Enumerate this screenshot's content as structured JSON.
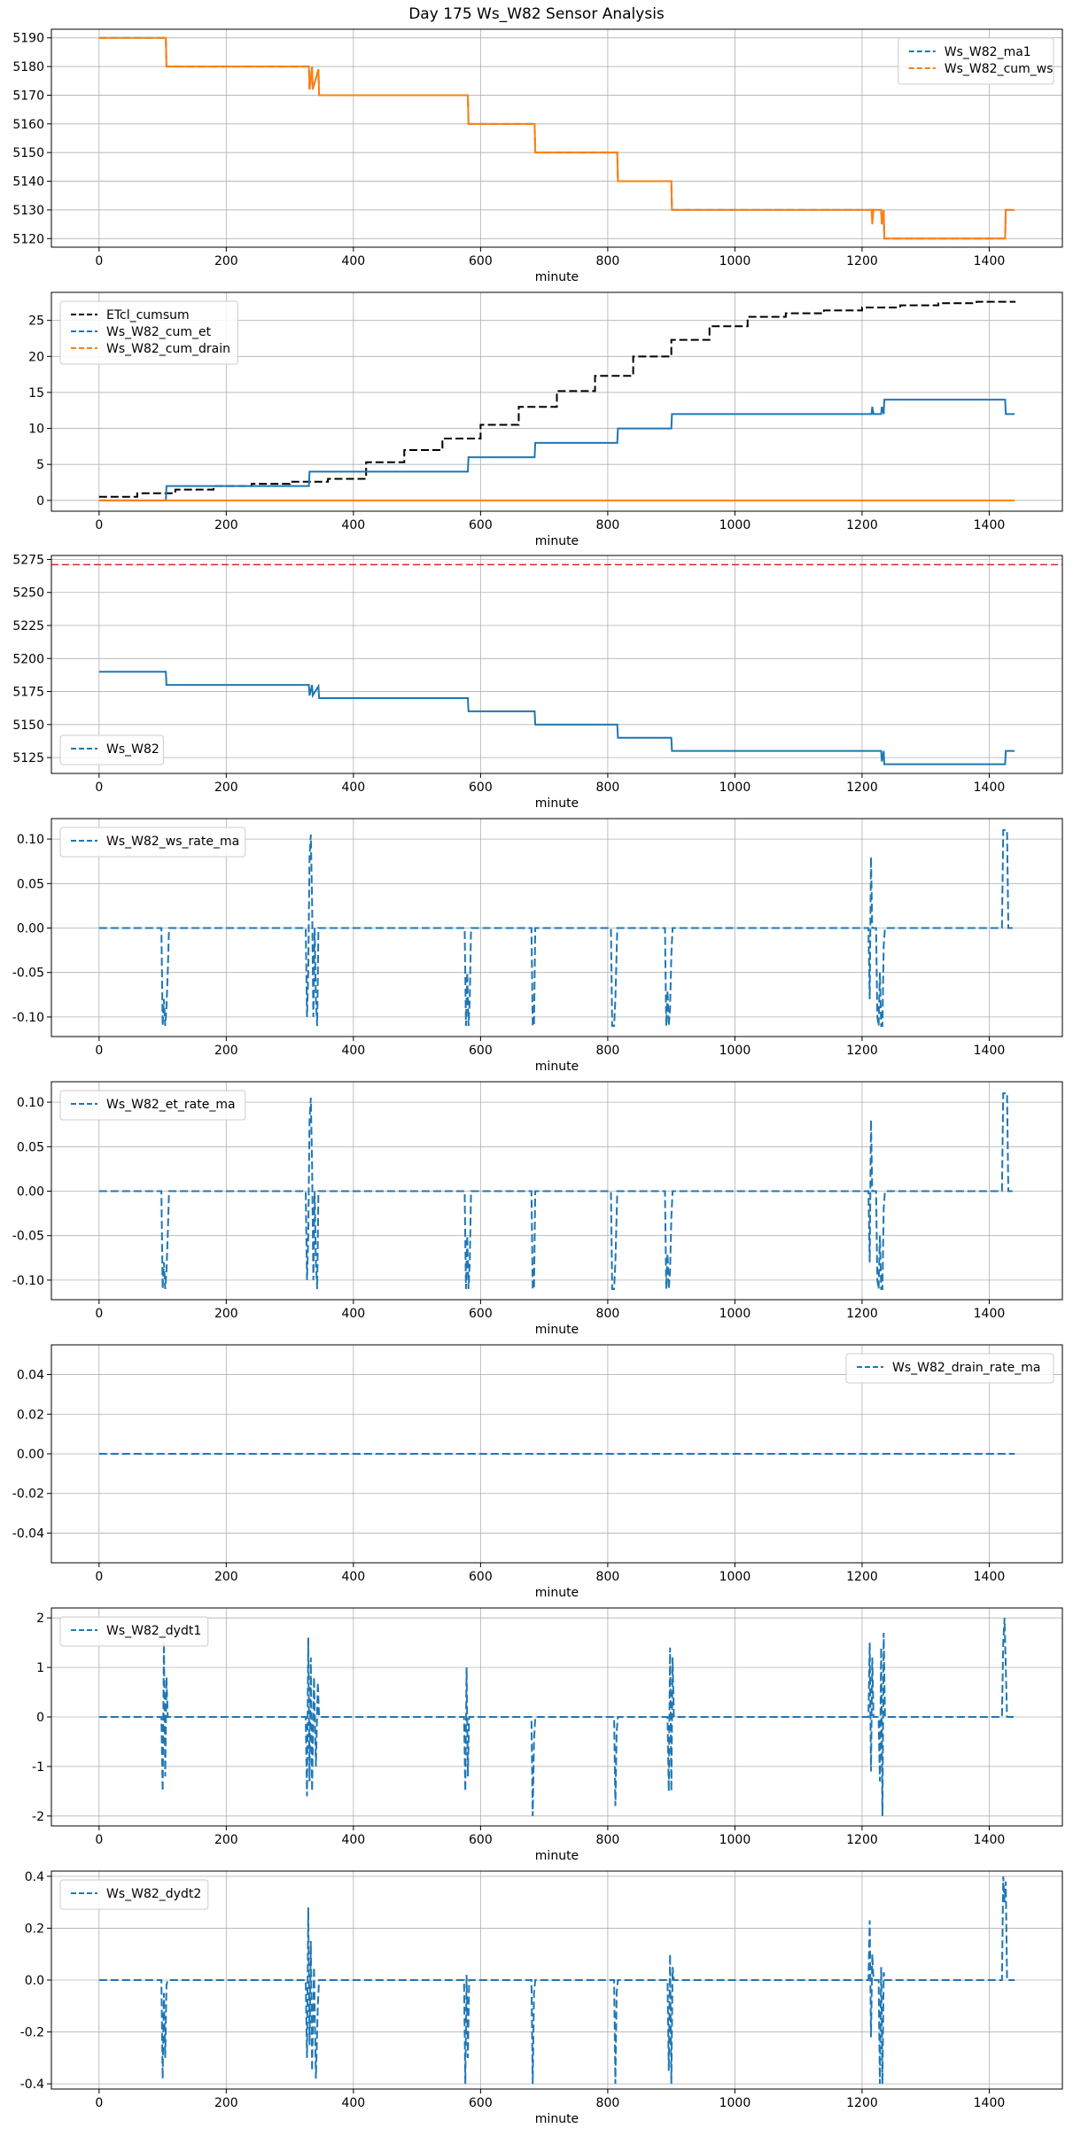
{
  "figure": {
    "title": "Day 175 Ws_W82 Sensor Analysis"
  },
  "colors": {
    "blue": "#1f77b4",
    "orange": "#ff7f0e",
    "black": "#000000",
    "red": "#d62728",
    "grid": "#b0b0b0"
  },
  "chart_data": [
    {
      "type": "line",
      "xlabel": "minute",
      "xlim": [
        -75,
        1515
      ],
      "ylim": [
        5117,
        5193
      ],
      "xticks": [
        0,
        200,
        400,
        600,
        800,
        1000,
        1200,
        1400
      ],
      "yticks": [
        5120,
        5130,
        5140,
        5150,
        5160,
        5170,
        5180,
        5190
      ],
      "ytick_labels": [
        "5120",
        "5130",
        "5140",
        "5150",
        "5160",
        "5170",
        "5180",
        "5190"
      ],
      "grid": true,
      "legend": "upper-right",
      "series": [
        {
          "name": "Ws_W82_ma1",
          "color": "#1f77b4",
          "style": "dashed",
          "in_legend": true,
          "x": [
            0,
            105,
            106,
            330,
            331,
            335,
            336,
            345,
            346,
            580,
            581,
            685,
            686,
            815,
            816,
            900,
            901,
            1215,
            1230,
            1231,
            1234,
            1235,
            1420,
            1425,
            1426,
            1440
          ],
          "y": [
            5190,
            5190,
            5180,
            5180,
            5172,
            5180,
            5172,
            5179,
            5170,
            5170,
            5160,
            5160,
            5150,
            5150,
            5140,
            5140,
            5130,
            5130,
            5130,
            5125,
            5130,
            5120,
            5120,
            5120,
            5130,
            5130
          ]
        },
        {
          "name": "Ws_W82_cum_ws",
          "color": "#ff7f0e",
          "style": "solid",
          "in_legend": true,
          "x": [
            0,
            105,
            106,
            330,
            331,
            335,
            336,
            345,
            346,
            580,
            581,
            685,
            686,
            815,
            816,
            900,
            901,
            1215,
            1216,
            1218,
            1219,
            1230,
            1231,
            1234,
            1235,
            1420,
            1425,
            1426,
            1440
          ],
          "y": [
            5190,
            5190,
            5180,
            5180,
            5172,
            5180,
            5172,
            5179,
            5170,
            5170,
            5160,
            5160,
            5150,
            5150,
            5140,
            5140,
            5130,
            5130,
            5125,
            5130,
            5130,
            5130,
            5125,
            5130,
            5120,
            5120,
            5120,
            5130,
            5130
          ]
        }
      ]
    },
    {
      "type": "line",
      "xlabel": "minute",
      "xlim": [
        -75,
        1515
      ],
      "ylim": [
        -1.5,
        28.9
      ],
      "xticks": [
        0,
        200,
        400,
        600,
        800,
        1000,
        1200,
        1400
      ],
      "yticks": [
        0,
        5,
        10,
        15,
        20,
        25
      ],
      "ytick_labels": [
        "0",
        "5",
        "10",
        "15",
        "20",
        "25"
      ],
      "grid": true,
      "legend": "upper-left",
      "series": [
        {
          "name": "ETcl_cumsum",
          "color": "#000000",
          "style": "step",
          "in_legend": true,
          "x": [
            0,
            60,
            120,
            180,
            240,
            300,
            360,
            420,
            480,
            540,
            600,
            660,
            720,
            780,
            840,
            900,
            960,
            1020,
            1080,
            1140,
            1200,
            1260,
            1320,
            1380,
            1440
          ],
          "y": [
            0.5,
            1.0,
            1.5,
            2.0,
            2.3,
            2.6,
            3.0,
            5.3,
            7.0,
            8.6,
            10.5,
            13.0,
            15.2,
            17.3,
            20.0,
            22.3,
            24.2,
            25.5,
            26.0,
            26.4,
            26.8,
            27.1,
            27.4,
            27.6,
            27.7
          ]
        },
        {
          "name": "Ws_W82_cum_et",
          "color": "#1f77b4",
          "style": "solid",
          "in_legend": true,
          "x": [
            0,
            105,
            106,
            330,
            331,
            345,
            346,
            580,
            581,
            685,
            686,
            815,
            816,
            900,
            901,
            1215,
            1216,
            1218,
            1219,
            1230,
            1231,
            1234,
            1235,
            1425,
            1426,
            1440
          ],
          "y": [
            0,
            0,
            2,
            2,
            4,
            4,
            4,
            4,
            6,
            6,
            8,
            8,
            10,
            10,
            12,
            12,
            13,
            12,
            12,
            12,
            13,
            12,
            14,
            14,
            12,
            12
          ]
        },
        {
          "name": "Ws_W82_cum_drain",
          "color": "#ff7f0e",
          "style": "solid",
          "in_legend": true,
          "x": [
            0,
            1440
          ],
          "y": [
            0,
            0
          ]
        }
      ]
    },
    {
      "type": "line",
      "xlabel": "minute",
      "xlim": [
        -75,
        1515
      ],
      "ylim": [
        5113,
        5278
      ],
      "xticks": [
        0,
        200,
        400,
        600,
        800,
        1000,
        1200,
        1400
      ],
      "yticks": [
        5125,
        5150,
        5175,
        5200,
        5225,
        5250,
        5275
      ],
      "ytick_labels": [
        "5125",
        "5150",
        "5175",
        "5200",
        "5225",
        "5250",
        "5275"
      ],
      "grid": true,
      "legend": "lower-left",
      "hline": {
        "y": 5271,
        "color": "#d62728",
        "style": "dashed"
      },
      "series": [
        {
          "name": "Ws_W82",
          "color": "#1f77b4",
          "style": "solid",
          "in_legend": true,
          "x": [
            0,
            105,
            106,
            330,
            331,
            335,
            336,
            345,
            346,
            580,
            581,
            685,
            686,
            815,
            816,
            900,
            901,
            1215,
            1230,
            1231,
            1234,
            1235,
            1420,
            1425,
            1426,
            1440
          ],
          "y": [
            5190,
            5190,
            5180,
            5180,
            5172,
            5180,
            5172,
            5179,
            5170,
            5170,
            5160,
            5160,
            5150,
            5150,
            5140,
            5140,
            5130,
            5130,
            5130,
            5122,
            5130,
            5120,
            5120,
            5120,
            5130,
            5130
          ]
        }
      ]
    },
    {
      "type": "line",
      "xlabel": "minute",
      "xlim": [
        -75,
        1515
      ],
      "ylim": [
        -0.122,
        0.123
      ],
      "xticks": [
        0,
        200,
        400,
        600,
        800,
        1000,
        1200,
        1400
      ],
      "yticks": [
        -0.1,
        -0.05,
        0,
        0.05,
        0.1
      ],
      "ytick_labels": [
        "-0.10",
        "-0.05",
        "0.00",
        "0.05",
        "0.10"
      ],
      "grid": true,
      "legend": "upper-left",
      "series": [
        {
          "name": "Ws_W82_ws_rate_ma",
          "color": "#1f77b4",
          "style": "dashed",
          "in_legend": true,
          "x": [
            0,
            98,
            100,
            102,
            104,
            106,
            108,
            110,
            325,
            327,
            329,
            331,
            333,
            335,
            337,
            339,
            341,
            343,
            345,
            575,
            577,
            579,
            581,
            583,
            585,
            680,
            682,
            684,
            686,
            690,
            805,
            807,
            810,
            812,
            815,
            820,
            890,
            892,
            894,
            896,
            898,
            900,
            902,
            1210,
            1212,
            1214,
            1216,
            1218,
            1222,
            1224,
            1226,
            1228,
            1230,
            1232,
            1234,
            1236,
            1420,
            1422,
            1426,
            1428,
            1430,
            1440
          ],
          "y": [
            0,
            0,
            -0.11,
            -0.08,
            -0.11,
            -0.09,
            -0.05,
            0,
            0,
            -0.1,
            -0.05,
            0.08,
            0.105,
            0.03,
            -0.1,
            0,
            -0.08,
            -0.11,
            0,
            0,
            -0.11,
            -0.05,
            -0.11,
            -0.08,
            0,
            0,
            -0.11,
            -0.11,
            0,
            0,
            0,
            -0.11,
            -0.11,
            -0.08,
            0,
            0,
            0,
            -0.11,
            -0.07,
            -0.11,
            -0.09,
            -0.03,
            0,
            0,
            -0.08,
            0.08,
            0,
            0,
            0,
            -0.1,
            -0.11,
            -0.05,
            -0.11,
            -0.11,
            -0.02,
            0,
            0,
            0.11,
            0.11,
            0.11,
            0,
            0
          ]
        }
      ]
    },
    {
      "type": "line",
      "xlabel": "minute",
      "xlim": [
        -75,
        1515
      ],
      "ylim": [
        -0.122,
        0.123
      ],
      "xticks": [
        0,
        200,
        400,
        600,
        800,
        1000,
        1200,
        1400
      ],
      "yticks": [
        -0.1,
        -0.05,
        0,
        0.05,
        0.1
      ],
      "ytick_labels": [
        "-0.10",
        "-0.05",
        "0.00",
        "0.05",
        "0.10"
      ],
      "grid": true,
      "legend": "upper-left",
      "series": [
        {
          "name": "Ws_W82_et_rate_ma",
          "color": "#1f77b4",
          "style": "dashed",
          "in_legend": true,
          "x": [
            0,
            98,
            100,
            102,
            104,
            106,
            108,
            110,
            325,
            327,
            329,
            331,
            333,
            335,
            337,
            339,
            341,
            343,
            345,
            575,
            577,
            579,
            581,
            583,
            585,
            680,
            682,
            684,
            686,
            690,
            805,
            807,
            810,
            812,
            815,
            820,
            890,
            892,
            894,
            896,
            898,
            900,
            902,
            1210,
            1212,
            1214,
            1216,
            1218,
            1222,
            1224,
            1226,
            1228,
            1230,
            1232,
            1234,
            1236,
            1420,
            1422,
            1426,
            1428,
            1430,
            1440
          ],
          "y": [
            0,
            0,
            -0.11,
            -0.08,
            -0.11,
            -0.09,
            -0.05,
            0,
            0,
            -0.1,
            -0.05,
            0.08,
            0.105,
            0.03,
            -0.1,
            0,
            -0.08,
            -0.11,
            0,
            0,
            -0.11,
            -0.05,
            -0.11,
            -0.08,
            0,
            0,
            -0.11,
            -0.11,
            0,
            0,
            0,
            -0.11,
            -0.11,
            -0.08,
            0,
            0,
            0,
            -0.11,
            -0.07,
            -0.11,
            -0.09,
            -0.03,
            0,
            0,
            -0.08,
            0.08,
            0,
            0,
            0,
            -0.1,
            -0.11,
            -0.05,
            -0.11,
            -0.11,
            -0.02,
            0,
            0,
            0.11,
            0.11,
            0.11,
            0,
            0
          ]
        }
      ]
    },
    {
      "type": "line",
      "xlabel": "minute",
      "xlim": [
        -75,
        1515
      ],
      "ylim": [
        -0.055,
        0.055
      ],
      "xticks": [
        0,
        200,
        400,
        600,
        800,
        1000,
        1200,
        1400
      ],
      "yticks": [
        -0.04,
        -0.02,
        0,
        0.02,
        0.04
      ],
      "ytick_labels": [
        "-0.04",
        "-0.02",
        "0.00",
        "0.02",
        "0.04"
      ],
      "grid": true,
      "legend": "upper-right",
      "series": [
        {
          "name": "Ws_W82_drain_rate_ma",
          "color": "#1f77b4",
          "style": "dashed",
          "in_legend": true,
          "x": [
            0,
            1440
          ],
          "y": [
            0,
            0
          ]
        }
      ]
    },
    {
      "type": "line",
      "xlabel": "minute",
      "xlim": [
        -75,
        1515
      ],
      "ylim": [
        -2.2,
        2.2
      ],
      "xticks": [
        0,
        200,
        400,
        600,
        800,
        1000,
        1200,
        1400
      ],
      "yticks": [
        -2,
        -1,
        0,
        1,
        2
      ],
      "ytick_labels": [
        "-2",
        "-1",
        "0",
        "1",
        "2"
      ],
      "grid": true,
      "legend": "upper-left",
      "series": [
        {
          "name": "Ws_W82_dydt1",
          "color": "#1f77b4",
          "style": "dashed",
          "in_legend": true,
          "x": [
            0,
            98,
            100,
            102,
            104,
            106,
            108,
            325,
            327,
            329,
            331,
            333,
            335,
            338,
            341,
            344,
            346,
            574,
            576,
            578,
            580,
            582,
            680,
            682,
            684,
            686,
            810,
            812,
            814,
            816,
            894,
            896,
            898,
            900,
            902,
            904,
            1210,
            1212,
            1214,
            1216,
            1218,
            1226,
            1228,
            1230,
            1232,
            1234,
            1236,
            1420,
            1422,
            1424,
            1426,
            1428,
            1440
          ],
          "y": [
            0,
            0,
            -1.5,
            1.5,
            -1.2,
            0.8,
            0,
            0,
            -1.6,
            1.6,
            -1.3,
            1.2,
            -1.5,
            0.8,
            -1.0,
            0.7,
            0,
            0,
            -1.5,
            1.0,
            -1.2,
            0,
            0,
            -2.0,
            -0.5,
            0,
            0,
            -1.8,
            -0.3,
            0,
            0,
            -1.5,
            1.4,
            -1.5,
            1.2,
            0,
            0,
            1.5,
            -1.1,
            1.2,
            0,
            0,
            -1.3,
            1.4,
            -2.0,
            1.7,
            0,
            0,
            1.5,
            2.0,
            1.0,
            0,
            0
          ]
        }
      ]
    },
    {
      "type": "line",
      "xlabel": "minute",
      "xlim": [
        -75,
        1515
      ],
      "ylim": [
        -0.42,
        0.42
      ],
      "xticks": [
        0,
        200,
        400,
        600,
        800,
        1000,
        1200,
        1400
      ],
      "yticks": [
        -0.4,
        -0.2,
        0,
        0.2,
        0.4
      ],
      "ytick_labels": [
        "-0.4",
        "-0.2",
        "0.0",
        "0.2",
        "0.4"
      ],
      "grid": true,
      "legend": "upper-left",
      "series": [
        {
          "name": "Ws_W82_dydt2",
          "color": "#1f77b4",
          "style": "dashed",
          "in_legend": true,
          "x": [
            0,
            98,
            100,
            102,
            104,
            106,
            108,
            325,
            327,
            329,
            331,
            333,
            335,
            338,
            341,
            344,
            346,
            574,
            576,
            578,
            580,
            582,
            680,
            682,
            684,
            686,
            810,
            812,
            814,
            816,
            894,
            896,
            898,
            900,
            902,
            904,
            1210,
            1212,
            1214,
            1216,
            1218,
            1226,
            1228,
            1230,
            1232,
            1234,
            1236,
            1420,
            1422,
            1424,
            1426,
            1428,
            1440
          ],
          "y": [
            0,
            0,
            -0.38,
            -0.05,
            -0.3,
            -0.02,
            0,
            0,
            -0.3,
            0.28,
            -0.25,
            0.15,
            -0.35,
            0.05,
            -0.38,
            -0.1,
            0,
            0,
            -0.4,
            0.02,
            -0.3,
            0,
            0,
            -0.4,
            -0.05,
            0,
            0,
            -0.4,
            -0.05,
            0,
            0,
            -0.35,
            0.1,
            -0.4,
            0.05,
            0,
            0,
            0.23,
            -0.22,
            0.1,
            0,
            0,
            -0.4,
            0.05,
            -0.4,
            0.03,
            0,
            0,
            0.4,
            0.3,
            0.38,
            0,
            0
          ]
        }
      ]
    }
  ]
}
